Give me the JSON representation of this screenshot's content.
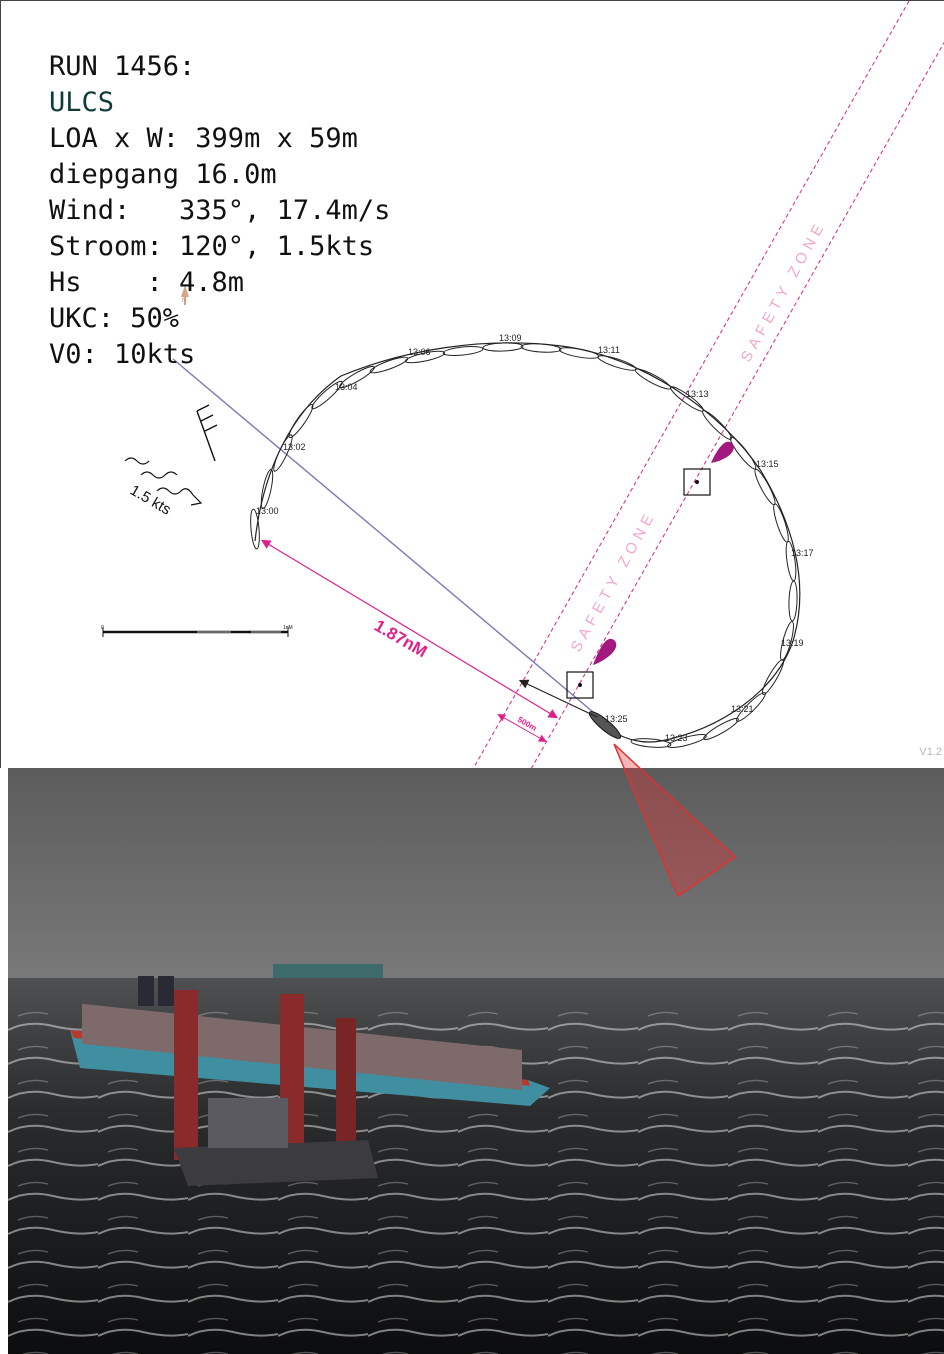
{
  "run": {
    "title": "RUN 1456:",
    "ship_class": "ULCS",
    "dimensions": "LOA x W: 399m x 59m",
    "draft": "diepgang 16.0m",
    "wind": "Wind:   335°, 17.4m/s",
    "current": "Stroom: 120°, 1.5kts",
    "waves": "Hs    : 4.8m",
    "ukc": "UKC: 50%",
    "speed": "V0: 10kts"
  },
  "chart": {
    "current_label": "1.5 kts",
    "distance_label": "1.87nM",
    "offset_label": "500m",
    "scale_start": "0",
    "scale_end": "1nM",
    "safety_zone_label": "SAFETY ZONE",
    "north_label": "N",
    "time_labels": [
      "13:00",
      "13:02",
      "13:04",
      "13:06",
      "13:09",
      "13:11",
      "13:13",
      "13:15",
      "13:17",
      "13:19",
      "13:21",
      "13:23",
      "13:25"
    ]
  },
  "version": "V1.2",
  "colors": {
    "magenta": "#e0208a",
    "safety_text": "#f2a6cc",
    "marker": "#a3187e",
    "camera_cone": "#e23030",
    "sea": "#1a1c1e",
    "sky": "#6a6a6a"
  }
}
